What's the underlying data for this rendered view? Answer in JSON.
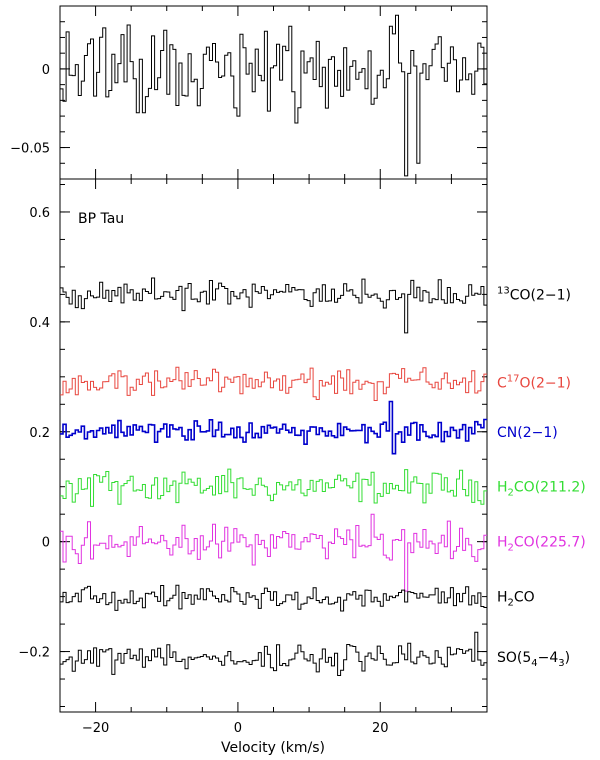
{
  "chart_data": [
    {
      "type": "line",
      "title": "",
      "xlabel": "",
      "ylabel": "",
      "xlim": [
        -25,
        35
      ],
      "ylim": [
        -0.07,
        0.04
      ],
      "yticks": [
        {
          "value": 0,
          "label": "0"
        },
        {
          "value": -0.05,
          "label": "−0.05"
        }
      ],
      "series": [
        {
          "color": "#000000",
          "offset": 0,
          "amplitude": 0.022,
          "seed": 11,
          "spikes": [
            {
              "x": 23.5,
              "y": -0.068
            },
            {
              "x": 25.4,
              "y": -0.06
            }
          ]
        }
      ]
    },
    {
      "type": "line",
      "title": "",
      "annotation": "BP Tau",
      "xlabel": "Velocity (km/s)",
      "ylabel": "",
      "xlim": [
        -25,
        35
      ],
      "ylim": [
        -0.31,
        0.66
      ],
      "xticks": [
        {
          "value": -20,
          "label": "−20"
        },
        {
          "value": 0,
          "label": "0"
        },
        {
          "value": 20,
          "label": "20"
        }
      ],
      "yticks": [
        {
          "value": 0.6,
          "label": "0.6"
        },
        {
          "value": 0.4,
          "label": "0.4"
        },
        {
          "value": 0.2,
          "label": "0.2"
        },
        {
          "value": 0,
          "label": "0"
        },
        {
          "value": -0.2,
          "label": "−0.2"
        }
      ],
      "series": [
        {
          "name": "13CO(2−1)",
          "sup": "13",
          "label_pre": "",
          "label_post": "CO(2−1)",
          "color": "#000000",
          "offset": 0.45,
          "amplitude": 0.018,
          "seed": 3,
          "spikes": [
            {
              "x": 23.5,
              "y": 0.38
            }
          ]
        },
        {
          "name": "C17O(2−1)",
          "sup": "17",
          "label_pre": "C",
          "label_post": "O(2−1)",
          "color": "#e8473f",
          "offset": 0.29,
          "amplitude": 0.022,
          "seed": 7,
          "spikes": []
        },
        {
          "name": "CN(2−1)",
          "sup": "",
          "label_pre": "CN(2−1)",
          "label_post": "",
          "color": "#0000cc",
          "offset": 0.2,
          "amplitude": 0.018,
          "seed": 19,
          "spikes": [
            {
              "x": 21.5,
              "y": 0.255
            },
            {
              "x": 22.0,
              "y": 0.16
            }
          ]
        },
        {
          "name": "H2CO(211.2)",
          "sub": "2",
          "label_pre": "H",
          "label_post": "CO(211.2)",
          "color": "#33dd33",
          "offset": 0.1,
          "amplitude": 0.022,
          "seed": 23,
          "spikes": []
        },
        {
          "name": "H2CO(225.7)",
          "sub": "2",
          "label_pre": "H",
          "label_post": "CO(225.7)",
          "color": "#e033e0",
          "offset": 0.0,
          "amplitude": 0.025,
          "seed": 31,
          "spikes": [
            {
              "x": 19.0,
              "y": 0.05
            },
            {
              "x": 23.5,
              "y": -0.09
            }
          ]
        },
        {
          "name": "H2CO",
          "sub": "2",
          "label_pre": "H",
          "label_post": "CO",
          "color": "#000000",
          "offset": -0.1,
          "amplitude": 0.016,
          "seed": 41,
          "spikes": []
        },
        {
          "name": "SO(54−43)",
          "subs": [
            "4",
            "3"
          ],
          "label_pre": "SO(5",
          "label_mid": "−4",
          "label_post": ")",
          "color": "#000000",
          "offset": -0.21,
          "amplitude": 0.02,
          "seed": 53,
          "spikes": [
            {
              "x": 33.5,
              "y": -0.165
            }
          ]
        }
      ]
    }
  ]
}
